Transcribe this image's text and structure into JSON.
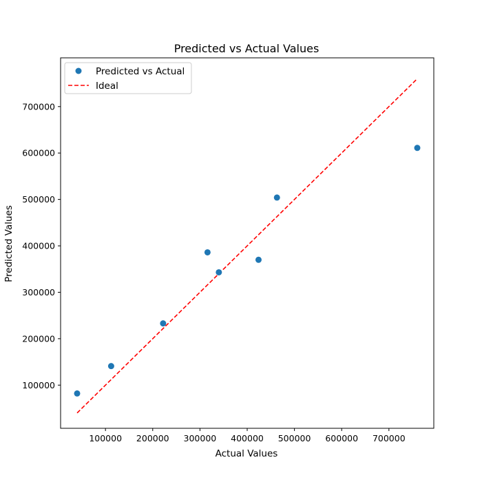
{
  "chart_data": {
    "type": "scatter",
    "title": "Predicted vs Actual Values",
    "xlabel": "Actual Values",
    "ylabel": "Predicted Values",
    "xlim": [
      5000,
      795000
    ],
    "ylim": [
      7000,
      805000
    ],
    "x_ticks": [
      100000,
      200000,
      300000,
      400000,
      500000,
      600000,
      700000
    ],
    "x_tick_labels": [
      "100000",
      "200000",
      "300000",
      "400000",
      "500000",
      "600000",
      "700000"
    ],
    "y_ticks": [
      100000,
      200000,
      300000,
      400000,
      500000,
      600000,
      700000
    ],
    "y_tick_labels": [
      "100000",
      "200000",
      "300000",
      "400000",
      "500000",
      "600000",
      "700000"
    ],
    "grid": false,
    "legend_position": "upper-left",
    "series": [
      {
        "name": "Predicted vs Actual",
        "kind": "points",
        "color": "#1f77b4",
        "x": [
          40000,
          112000,
          222000,
          316000,
          340000,
          424000,
          463000,
          760000
        ],
        "y": [
          82000,
          141000,
          233000,
          386000,
          343000,
          370000,
          504000,
          611000
        ]
      },
      {
        "name": "Ideal",
        "kind": "dashed-line",
        "color": "#ff0000",
        "x": [
          40000,
          760000
        ],
        "y": [
          40000,
          760000
        ]
      }
    ]
  }
}
